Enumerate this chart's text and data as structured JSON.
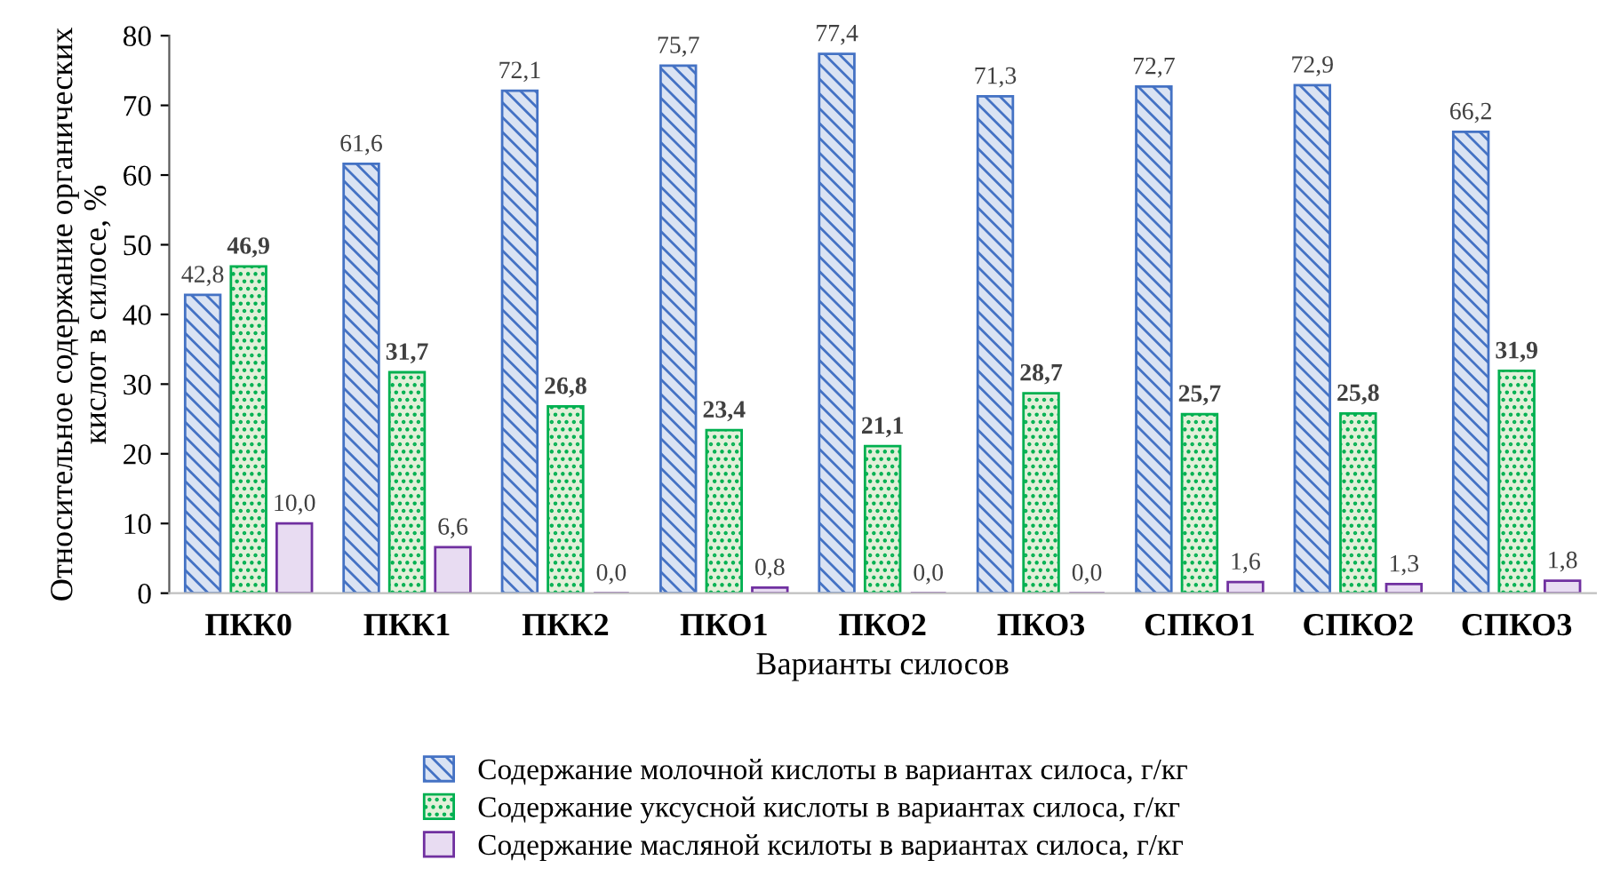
{
  "chart_data": {
    "type": "bar",
    "xlabel": "Варианты силосов",
    "ylabel": "Относительное содержание органических кислот в силосе, %",
    "categories": [
      "ПКК0",
      "ПКК1",
      "ПКК2",
      "ПКО1",
      "ПКО2",
      "ПКО3",
      "СПКО1",
      "СПКО2",
      "СПКО3"
    ],
    "series": [
      {
        "name": "Содержание молочной кислоты в вариантах силоса, г/кг",
        "color": "#4472c4",
        "values": [
          42.8,
          61.6,
          72.1,
          75.7,
          77.4,
          71.3,
          72.7,
          72.9,
          66.2
        ],
        "value_labels": [
          "42,8",
          "61,6",
          "72,1",
          "75,7",
          "77,4",
          "71,3",
          "72,7",
          "72,9",
          "66,2"
        ]
      },
      {
        "name": "Содержание уксусной кислоты в вариантах силоса, г/кг",
        "color": "#00b050",
        "values": [
          46.9,
          31.7,
          26.8,
          23.4,
          21.1,
          28.7,
          25.7,
          25.8,
          31.9
        ],
        "value_labels": [
          "46,9",
          "31,7",
          "26,8",
          "23,4",
          "21,1",
          "28,7",
          "25,7",
          "25,8",
          "31,9"
        ]
      },
      {
        "name": "Содержание масляной ксилоты в вариантах силоса, г/кг",
        "color": "#7030a0",
        "values": [
          10.0,
          6.6,
          0.0,
          0.8,
          0.0,
          0.0,
          1.6,
          1.3,
          1.8
        ],
        "value_labels": [
          "10,0",
          "6,6",
          "0,0",
          "0,8",
          "0,0",
          "0,0",
          "1,6",
          "1,3",
          "1,8"
        ]
      }
    ],
    "ylim": [
      0,
      80
    ],
    "yticks": [
      0,
      10,
      20,
      30,
      40,
      50,
      60,
      70,
      80
    ],
    "grid": false,
    "legend": "bottom"
  }
}
